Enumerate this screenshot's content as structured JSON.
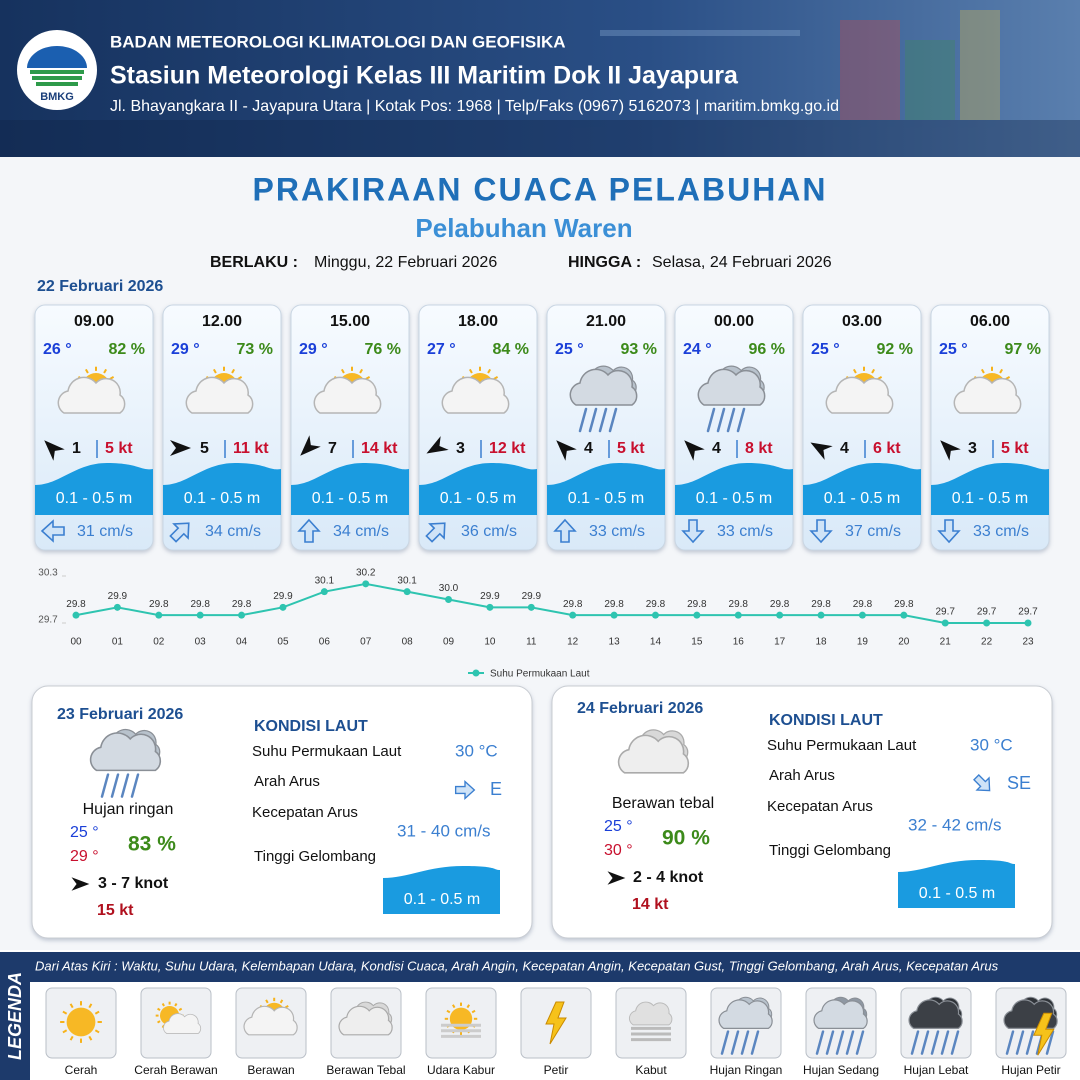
{
  "header": {
    "logo": "BMKG",
    "org": "BADAN METEOROLOGI KLIMATOLOGI DAN GEOFISIKA",
    "station": "Stasiun Meteorologi Kelas III Maritim Dok II Jayapura",
    "address": "Jl. Bhayangkara II - Jayapura Utara | Kotak Pos: 1968 | Telp/Faks (0967) 5162073 | maritim.bmkg.go.id"
  },
  "title": "PRAKIRAAN CUACA PELABUHAN",
  "subtitle": "Pelabuhan Waren",
  "validity": {
    "from_label": "BERLAKU :",
    "from": "Minggu, 22 Februari 2026",
    "to_label": "HINGGA :",
    "to": "Selasa, 24 Februari 2026"
  },
  "forecast": {
    "date": "22 Februari 2026",
    "cards": [
      {
        "time": "09.00",
        "temp": "26 °",
        "humidity": "82 %",
        "icon": 2,
        "wind_arrow": 315,
        "wind": "1",
        "gust": "5 kt",
        "wave": "0.1 - 0.5 m",
        "current_arrow": 270,
        "current": "31 cm/s"
      },
      {
        "time": "12.00",
        "temp": "29 °",
        "humidity": "73 %",
        "icon": 2,
        "wind_arrow": 90,
        "wind": "5",
        "gust": "11 kt",
        "wave": "0.1 - 0.5 m",
        "current_arrow": 45,
        "current": "34 cm/s"
      },
      {
        "time": "15.00",
        "temp": "29 °",
        "humidity": "76 %",
        "icon": 2,
        "wind_arrow": 225,
        "wind": "7",
        "gust": "14 kt",
        "wave": "0.1 - 0.5 m",
        "current_arrow": 0,
        "current": "34 cm/s"
      },
      {
        "time": "18.00",
        "temp": "27 °",
        "humidity": "84 %",
        "icon": 2,
        "wind_arrow": 240,
        "wind": "3",
        "gust": "12 kt",
        "wave": "0.1 - 0.5 m",
        "current_arrow": 45,
        "current": "36 cm/s"
      },
      {
        "time": "21.00",
        "temp": "25 °",
        "humidity": "93 %",
        "icon": 7,
        "wind_arrow": 315,
        "wind": "4",
        "gust": "5 kt",
        "wave": "0.1 - 0.5 m",
        "current_arrow": 0,
        "current": "33 cm/s"
      },
      {
        "time": "00.00",
        "temp": "24 °",
        "humidity": "96 %",
        "icon": 7,
        "wind_arrow": 315,
        "wind": "4",
        "gust": "8 kt",
        "wave": "0.1 - 0.5 m",
        "current_arrow": 180,
        "current": "33 cm/s"
      },
      {
        "time": "03.00",
        "temp": "25 °",
        "humidity": "92 %",
        "icon": 2,
        "wind_arrow": 300,
        "wind": "4",
        "gust": "6 kt",
        "wave": "0.1 - 0.5 m",
        "current_arrow": 180,
        "current": "37 cm/s"
      },
      {
        "time": "06.00",
        "temp": "25 °",
        "humidity": "97 %",
        "icon": 2,
        "wind_arrow": 315,
        "wind": "3",
        "gust": "5 kt",
        "wave": "0.1 - 0.5 m",
        "current_arrow": 180,
        "current": "33 cm/s"
      }
    ]
  },
  "chart_data": {
    "type": "line",
    "categories": [
      "00",
      "01",
      "02",
      "03",
      "04",
      "05",
      "06",
      "07",
      "08",
      "09",
      "10",
      "11",
      "12",
      "13",
      "14",
      "15",
      "16",
      "17",
      "18",
      "19",
      "20",
      "21",
      "22",
      "23"
    ],
    "series": [
      {
        "name": "Suhu Permukaan Laut",
        "color": "#2ec4b0",
        "values": [
          29.8,
          29.9,
          29.8,
          29.8,
          29.8,
          29.9,
          30.1,
          30.2,
          30.1,
          30.0,
          29.9,
          29.9,
          29.8,
          29.8,
          29.8,
          29.8,
          29.8,
          29.8,
          29.8,
          29.8,
          29.8,
          29.7,
          29.7,
          29.7
        ],
        "value_labels": [
          "29.8",
          "29.9",
          "29.8",
          "29.8",
          "29.8",
          "29.9",
          "30.1",
          "30.2",
          "30.1",
          "30.0",
          "29.9",
          "29.9",
          "29.8",
          "29.8",
          "29.8",
          "29.8",
          "29.8",
          "29.8",
          "29.8",
          "29.8",
          "29.8",
          "29.7",
          "29.7",
          "29.7"
        ]
      }
    ],
    "ylim": [
      29.7,
      30.3
    ],
    "yticks": [
      29.7,
      30.3
    ],
    "grid": false,
    "legend": "bottom"
  },
  "days": [
    {
      "date": "23 Februari 2026",
      "icon": 7,
      "weather": "Hujan ringan",
      "temp_min": "25 °",
      "temp_max": "29 °",
      "humidity": "83 %",
      "wind_arrow": 90,
      "wind": "3 - 7 knot",
      "gust": "15 kt",
      "sea_heading": "KONDISI LAUT",
      "sst_label": "Suhu Permukaan Laut",
      "sst": "30 °C",
      "current_dir_label": "Arah Arus",
      "current_arrow": 90,
      "current_dir": "E",
      "current_speed_label": "Kecepatan Arus",
      "current_speed": "31 - 40 cm/s",
      "wave_label": "Tinggi Gelombang",
      "wave": "0.1 - 0.5 m"
    },
    {
      "date": "24 Februari 2026",
      "icon": 3,
      "weather": "Berawan tebal",
      "temp_min": "25 °",
      "temp_max": "30 °",
      "humidity": "90 %",
      "wind_arrow": 90,
      "wind": "2 - 4 knot",
      "gust": "14 kt",
      "sea_heading": "KONDISI LAUT",
      "sst_label": "Suhu Permukaan Laut",
      "sst": "30 °C",
      "current_dir_label": "Arah Arus",
      "current_arrow": 135,
      "current_dir": "SE",
      "current_speed_label": "Kecepatan Arus",
      "current_speed": "32 - 42 cm/s",
      "wave_label": "Tinggi Gelombang",
      "wave": "0.1 - 0.5 m"
    }
  ],
  "legend": {
    "title": "LEGENDA",
    "description": "Dari Atas Kiri : Waktu, Suhu Udara, Kelembapan Udara, Kondisi Cuaca, Arah Angin, Kecepatan Angin, Kecepatan Gust, Tinggi Gelombang, Arah Arus, Kecepatan Arus",
    "items": [
      "Cerah",
      "Cerah Berawan",
      "Berawan",
      "Berawan Tebal",
      "Udara Kabur",
      "Petir",
      "Kabut",
      "Hujan Ringan",
      "Hujan Sedang",
      "Hujan Lebat",
      "Hujan Petir"
    ]
  }
}
